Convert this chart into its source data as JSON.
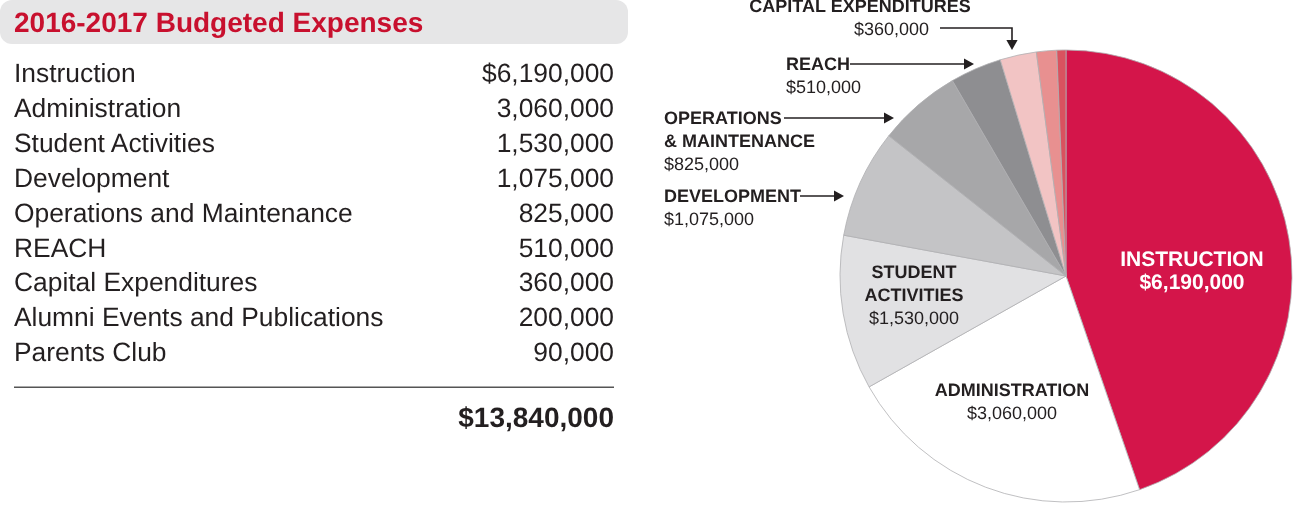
{
  "chart_data": [
    {
      "type": "other",
      "title": "2016-2017 Budgeted Expenses",
      "categories": [
        "Instruction",
        "Administration",
        "Student Activities",
        "Development",
        "Operations and Maintenance",
        "REACH",
        "Capital Expenditures",
        "Alumni Events and Publications",
        "Parents Club"
      ],
      "value_labels": [
        "$6,190,000",
        "3,060,000",
        "1,530,000",
        "1,075,000",
        "825,000",
        "510,000",
        "360,000",
        "200,000",
        "90,000"
      ],
      "annotations": [
        "$13,840,000"
      ]
    },
    {
      "type": "pie",
      "categories": [
        "INSTRUCTION",
        "ADMINISTRATION",
        "STUDENT\nACTIVITIES",
        "DEVELOPMENT",
        "OPERATIONS\n& MAINTENANCE",
        "REACH",
        "CAPITAL EXPENDITURES",
        null,
        null
      ],
      "values": [
        6190000,
        3060000,
        1530000,
        1075000,
        825000,
        510000,
        360000,
        200000,
        90000
      ],
      "colors": [
        "#d4154a",
        "#ffffff",
        "#e1e1e3",
        "#c4c4c6",
        "#a7a7a9",
        "#8e8e91",
        "#f2c4c4",
        "#e89090",
        "#d9525f"
      ],
      "value_labels": [
        "$6,190,000",
        "$3,060,000",
        "$1,530,000",
        "$1,075,000",
        "$825,000",
        "$510,000",
        "$360,000",
        null,
        null
      ]
    }
  ]
}
